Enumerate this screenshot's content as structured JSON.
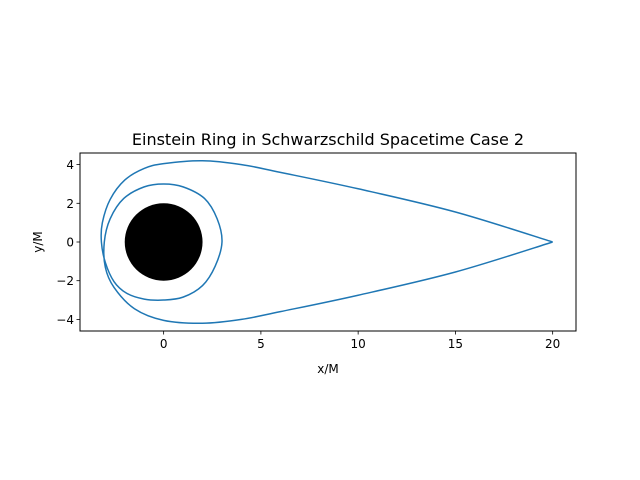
{
  "chart_data": {
    "type": "line",
    "title": "Einstein Ring in Schwarzschild Spacetime Case 2",
    "xlabel": "x/M",
    "ylabel": "y/M",
    "xlim": [
      -4.3,
      21.2
    ],
    "ylim": [
      -4.6,
      4.6
    ],
    "aspect": "equal",
    "grid": false,
    "legend": "none",
    "xticks": [
      {
        "value": 0,
        "label": "0"
      },
      {
        "value": 5,
        "label": "5"
      },
      {
        "value": 10,
        "label": "10"
      },
      {
        "value": 15,
        "label": "15"
      },
      {
        "value": 20,
        "label": "20"
      }
    ],
    "yticks": [
      {
        "value": 4,
        "label": "4"
      },
      {
        "value": 2,
        "label": "2"
      },
      {
        "value": 0,
        "label": "0"
      },
      {
        "value": -2,
        "label": "−2"
      },
      {
        "value": -4,
        "label": "−4"
      }
    ],
    "black_hole": {
      "center": [
        0,
        0
      ],
      "radius": 2,
      "color": "#000000"
    },
    "series": [
      {
        "color": "#1f77b4",
        "points": [
          [
            20,
            0
          ],
          [
            15,
            1.55
          ],
          [
            10,
            2.75
          ],
          [
            6,
            3.6
          ],
          [
            4,
            4.0
          ],
          [
            2,
            4.2
          ],
          [
            0,
            4.05
          ],
          [
            -1,
            3.8
          ],
          [
            -2,
            3.2
          ],
          [
            -2.75,
            2.2
          ],
          [
            -3.15,
            1.0
          ],
          [
            -3.2,
            0
          ],
          [
            -3.0,
            -1.05
          ],
          [
            -2.55,
            -2.05
          ],
          [
            -1.9,
            -2.65
          ],
          [
            -1,
            -2.95
          ],
          [
            0,
            -3.0
          ],
          [
            1,
            -2.85
          ],
          [
            2,
            -2.25
          ],
          [
            2.65,
            -1.25
          ],
          [
            3.0,
            0
          ],
          [
            2.75,
            1.2
          ],
          [
            2.1,
            2.25
          ],
          [
            1,
            2.85
          ],
          [
            0,
            3.0
          ],
          [
            -1,
            2.85
          ],
          [
            -2.05,
            2.25
          ],
          [
            -2.75,
            1.2
          ],
          [
            -3.05,
            0
          ],
          [
            -3.0,
            -1.3
          ],
          [
            -2.55,
            -2.35
          ],
          [
            -1.5,
            -3.45
          ],
          [
            0,
            -4.05
          ],
          [
            2,
            -4.2
          ],
          [
            4,
            -4.0
          ],
          [
            6,
            -3.6
          ],
          [
            10,
            -2.75
          ],
          [
            15,
            -1.55
          ],
          [
            20,
            0
          ]
        ]
      }
    ]
  }
}
